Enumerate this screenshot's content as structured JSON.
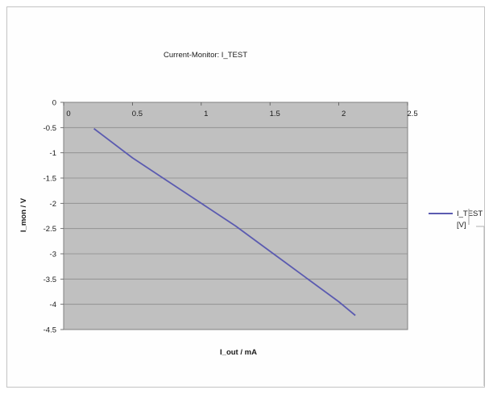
{
  "chart_data": {
    "type": "line",
    "title": "Current-Monitor: I_TEST",
    "xlabel": "I_out / mA",
    "ylabel": "I_mon / V",
    "xlim": [
      0,
      2.5
    ],
    "ylim": [
      -4.5,
      0
    ],
    "xticks": [
      "0",
      "0.5",
      "1",
      "1.5",
      "2",
      "2.5"
    ],
    "yticks": [
      "0",
      "-0.5",
      "-1",
      "-1.5",
      "-2",
      "-2.5",
      "-3",
      "-3.5",
      "-4",
      "-4.5"
    ],
    "x_axis_position": "top",
    "grid": true,
    "legend_position": "right",
    "colors": {
      "plot_background": "#c0c0c0",
      "line": "#5b5bb0",
      "gridline": "#8a8a8a"
    },
    "series": [
      {
        "name": "I_TEST [V]",
        "x": [
          0.22,
          0.5,
          0.75,
          1.0,
          1.25,
          1.5,
          1.6,
          1.75,
          2.0,
          2.12
        ],
        "values": [
          -0.52,
          -1.1,
          -1.55,
          -2.0,
          -2.45,
          -2.95,
          -3.15,
          -3.45,
          -3.95,
          -4.22
        ]
      }
    ]
  },
  "legend": {
    "line1": "I_TEST",
    "line2": "[V]"
  }
}
